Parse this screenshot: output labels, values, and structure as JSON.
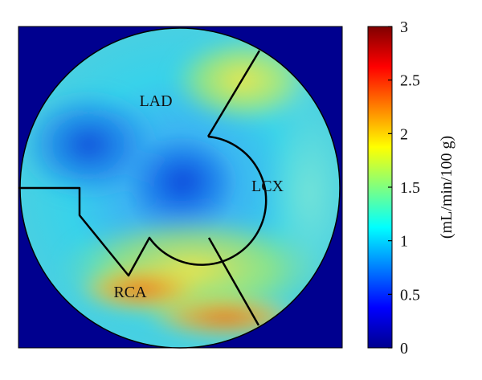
{
  "chart_data": {
    "type": "heatmap",
    "subtype": "polar-bullseye",
    "title": "",
    "regions": [
      {
        "label": "LAD",
        "approx_flow": 1.2,
        "range": [
          0.6,
          1.6
        ]
      },
      {
        "label": "LCX",
        "approx_flow": 1.4,
        "range": [
          1.0,
          2.0
        ]
      },
      {
        "label": "RCA",
        "approx_flow": 1.7,
        "range": [
          1.2,
          2.4
        ]
      }
    ],
    "colorbar": {
      "label": "(mL/min/100 g)",
      "min": 0,
      "max": 3,
      "ticks": [
        0,
        0.5,
        1,
        1.5,
        2,
        2.5,
        3
      ],
      "tick_labels": [
        "0",
        "0.5",
        "1",
        "1.5",
        "2",
        "2.5",
        "3"
      ],
      "colormap": "jet"
    },
    "background_color": "#00008f"
  }
}
